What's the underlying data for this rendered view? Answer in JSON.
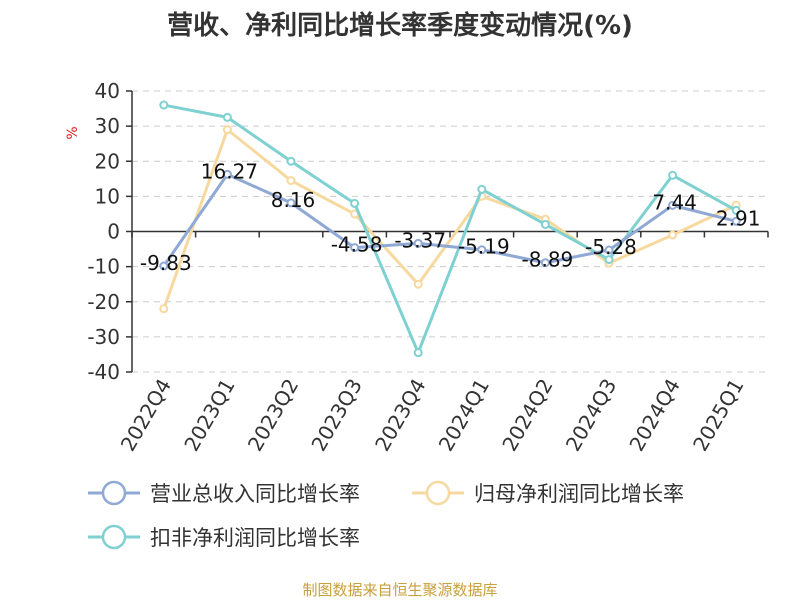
{
  "chart_data": {
    "type": "line",
    "title": "营收、净利同比增长率季度变动情况(%)",
    "ylabel": "%",
    "xlabel": "",
    "categories": [
      "2022Q4",
      "2023Q1",
      "2023Q2",
      "2023Q3",
      "2023Q4",
      "2024Q1",
      "2024Q2",
      "2024Q3",
      "2024Q4",
      "2025Q1"
    ],
    "ylim": [
      -40,
      40
    ],
    "yticks": [
      40,
      30,
      20,
      10,
      0,
      -10,
      -20,
      -30,
      -40
    ],
    "grid": true,
    "legend_position": "bottom",
    "series": [
      {
        "name": "营业总收入同比增长率",
        "color": "#8fa8d4",
        "values": [
          -9.83,
          16.27,
          8.16,
          -4.58,
          -3.37,
          -5.19,
          -8.89,
          -5.28,
          7.44,
          2.91
        ],
        "labels": [
          "-9.83",
          "16.27",
          "8.16",
          "-4.58",
          "-3.37",
          "-5.19",
          "-8.89",
          "-5.28",
          "7.44",
          "2.91"
        ]
      },
      {
        "name": "归母净利润同比增长率",
        "color": "#f7d9a0",
        "values": [
          -22,
          29,
          14.5,
          5,
          -15,
          10,
          3.5,
          -9,
          -1,
          7.5
        ]
      },
      {
        "name": "扣非净利润同比增长率",
        "color": "#7fd1d1",
        "values": [
          36,
          32.5,
          20,
          8,
          -34.5,
          12,
          2,
          -8,
          16,
          6
        ]
      }
    ],
    "source": "制图数据来自恒生聚源数据库"
  }
}
